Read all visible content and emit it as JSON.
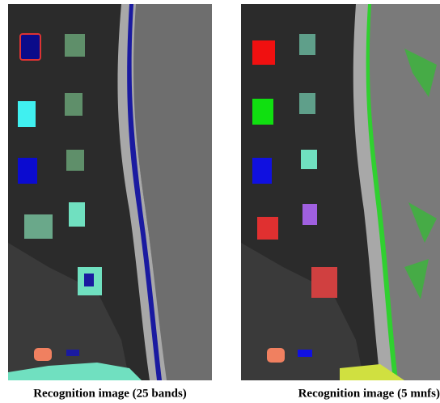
{
  "figures": [
    {
      "caption": "Recognition image (25 bands)"
    },
    {
      "caption": "Recognition image (5 mnfs)"
    }
  ]
}
